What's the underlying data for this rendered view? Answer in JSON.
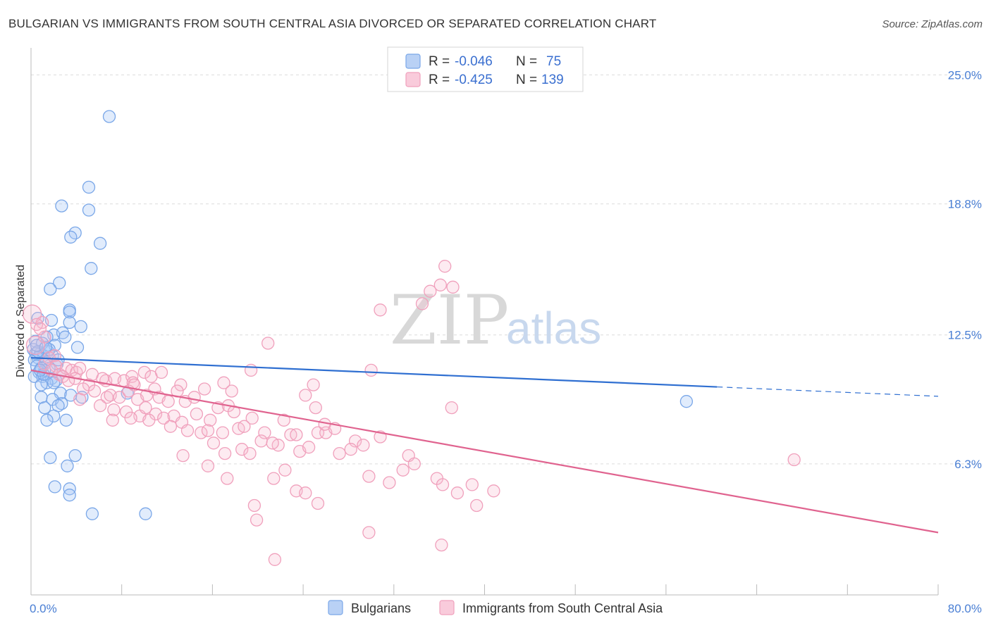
{
  "chart_data": {
    "type": "scatter",
    "title": "BULGARIAN VS IMMIGRANTS FROM SOUTH CENTRAL ASIA DIVORCED OR SEPARATED CORRELATION CHART",
    "source": "Source: ZipAtlas.com",
    "ylabel": "Divorced or Separated",
    "xlabel": "",
    "xlim": [
      0,
      80
    ],
    "ylim": [
      0,
      26.3
    ],
    "x_tick_labels": [
      "0.0%",
      "80.0%"
    ],
    "y_ticks": [
      6.3,
      12.5,
      18.8,
      25.0
    ],
    "y_tick_labels": [
      "6.3%",
      "12.5%",
      "18.8%",
      "25.0%"
    ],
    "watermark": [
      "ZIP",
      "atlas"
    ],
    "legend": {
      "rows": [
        {
          "r_label": "R =",
          "r_value": "-0.046",
          "n_label": "N =",
          "n_value": "75"
        },
        {
          "r_label": "R =",
          "r_value": "-0.425",
          "n_label": "N =",
          "n_value": "139"
        }
      ]
    },
    "series": [
      {
        "name": "Bulgarians",
        "color": "#7aa7e8",
        "line_color": "#2f6fd1",
        "trend": {
          "x0": 0,
          "y0": 11.4,
          "x1": 60.5,
          "y1": 10.0,
          "dash_x1": 80,
          "dash_y1": 9.55
        },
        "points": [
          [
            6.9,
            23.0
          ],
          [
            5.1,
            19.6
          ],
          [
            2.7,
            18.7
          ],
          [
            5.1,
            18.5
          ],
          [
            3.9,
            17.4
          ],
          [
            3.5,
            17.2
          ],
          [
            6.1,
            16.9
          ],
          [
            5.3,
            15.7
          ],
          [
            2.5,
            15.0
          ],
          [
            1.7,
            14.7
          ],
          [
            3.4,
            13.7
          ],
          [
            0.6,
            13.3
          ],
          [
            1.8,
            13.2
          ],
          [
            3.4,
            13.6
          ],
          [
            3.4,
            13.1
          ],
          [
            4.4,
            12.9
          ],
          [
            2.0,
            12.5
          ],
          [
            2.8,
            12.6
          ],
          [
            1.4,
            12.4
          ],
          [
            0.4,
            12.2
          ],
          [
            3.0,
            12.4
          ],
          [
            1.0,
            12.1
          ],
          [
            2.1,
            12.0
          ],
          [
            4.1,
            11.9
          ],
          [
            0.2,
            11.8
          ],
          [
            1.5,
            11.7
          ],
          [
            0.8,
            11.6
          ],
          [
            0.4,
            11.6
          ],
          [
            1.9,
            11.5
          ],
          [
            1.1,
            11.5
          ],
          [
            0.6,
            11.4
          ],
          [
            0.3,
            11.3
          ],
          [
            1.3,
            11.2
          ],
          [
            2.3,
            11.1
          ],
          [
            0.5,
            11.0
          ],
          [
            1.6,
            10.9
          ],
          [
            1.2,
            10.8
          ],
          [
            0.7,
            10.7
          ],
          [
            2.5,
            10.6
          ],
          [
            1.0,
            10.5
          ],
          [
            0.3,
            10.5
          ],
          [
            1.8,
            10.4
          ],
          [
            2.2,
            10.3
          ],
          [
            1.4,
            10.2
          ],
          [
            0.9,
            10.1
          ],
          [
            2.0,
            10.2
          ],
          [
            2.6,
            9.7
          ],
          [
            3.5,
            9.6
          ],
          [
            0.9,
            9.5
          ],
          [
            1.9,
            9.4
          ],
          [
            2.7,
            9.2
          ],
          [
            2.4,
            9.1
          ],
          [
            1.2,
            9.0
          ],
          [
            4.5,
            9.5
          ],
          [
            2.0,
            8.6
          ],
          [
            3.1,
            8.4
          ],
          [
            1.4,
            8.4
          ],
          [
            8.5,
            9.7
          ],
          [
            3.9,
            6.7
          ],
          [
            1.7,
            6.6
          ],
          [
            3.2,
            6.2
          ],
          [
            2.1,
            5.2
          ],
          [
            3.4,
            5.1
          ],
          [
            3.4,
            4.8
          ],
          [
            5.4,
            3.9
          ],
          [
            10.1,
            3.9
          ],
          [
            57.8,
            9.3
          ],
          [
            0.6,
            11.7
          ],
          [
            0.9,
            10.9
          ],
          [
            1.6,
            11.8
          ],
          [
            2.4,
            11.3
          ],
          [
            0.5,
            12.0
          ],
          [
            1.1,
            10.6
          ],
          [
            1.3,
            11.9
          ],
          [
            0.8,
            10.8
          ]
        ]
      },
      {
        "name": "Immigrants from South Central Asia",
        "color": "#f0a0bc",
        "line_color": "#e0638f",
        "trend": {
          "x0": 0,
          "y0": 10.8,
          "x1": 80,
          "y1": 3.0
        },
        "points": [
          [
            0.1,
            13.5
          ],
          [
            1.0,
            13.1
          ],
          [
            0.5,
            13.0
          ],
          [
            1.2,
            12.4
          ],
          [
            0.8,
            12.8
          ],
          [
            0.4,
            12.0
          ],
          [
            2.1,
            11.5
          ],
          [
            1.6,
            11.4
          ],
          [
            1.2,
            11.1
          ],
          [
            2.2,
            11.0
          ],
          [
            1.8,
            10.8
          ],
          [
            2.5,
            10.6
          ],
          [
            3.1,
            10.9
          ],
          [
            3.6,
            10.8
          ],
          [
            4.0,
            10.7
          ],
          [
            4.3,
            10.9
          ],
          [
            2.8,
            10.5
          ],
          [
            3.9,
            10.4
          ],
          [
            5.4,
            10.6
          ],
          [
            5.1,
            10.1
          ],
          [
            6.6,
            10.3
          ],
          [
            7.4,
            10.4
          ],
          [
            8.2,
            10.3
          ],
          [
            8.9,
            10.5
          ],
          [
            9.0,
            10.2
          ],
          [
            10.0,
            10.7
          ],
          [
            10.6,
            10.5
          ],
          [
            4.6,
            9.9
          ],
          [
            5.6,
            9.8
          ],
          [
            6.7,
            9.5
          ],
          [
            7.0,
            9.6
          ],
          [
            7.8,
            9.5
          ],
          [
            8.6,
            9.8
          ],
          [
            9.4,
            9.4
          ],
          [
            10.2,
            9.6
          ],
          [
            10.9,
            9.9
          ],
          [
            11.3,
            9.5
          ],
          [
            12.1,
            9.3
          ],
          [
            13.2,
            10.1
          ],
          [
            13.6,
            9.3
          ],
          [
            14.4,
            9.5
          ],
          [
            4.3,
            9.4
          ],
          [
            6.1,
            9.1
          ],
          [
            7.3,
            8.9
          ],
          [
            8.4,
            8.8
          ],
          [
            9.6,
            8.6
          ],
          [
            10.1,
            9.0
          ],
          [
            11.0,
            8.7
          ],
          [
            11.7,
            8.5
          ],
          [
            12.6,
            8.6
          ],
          [
            13.3,
            8.3
          ],
          [
            14.6,
            8.7
          ],
          [
            15.8,
            8.4
          ],
          [
            16.5,
            9.0
          ],
          [
            17.4,
            9.1
          ],
          [
            17.9,
            8.8
          ],
          [
            7.2,
            8.4
          ],
          [
            8.8,
            8.5
          ],
          [
            10.4,
            8.4
          ],
          [
            12.3,
            8.1
          ],
          [
            13.8,
            7.9
          ],
          [
            15.0,
            7.8
          ],
          [
            15.6,
            7.9
          ],
          [
            16.9,
            7.8
          ],
          [
            17.7,
            9.8
          ],
          [
            18.3,
            8.0
          ],
          [
            19.5,
            8.5
          ],
          [
            20.6,
            7.8
          ],
          [
            21.8,
            7.2
          ],
          [
            22.9,
            7.7
          ],
          [
            23.7,
            6.9
          ],
          [
            24.5,
            7.1
          ],
          [
            25.3,
            7.8
          ],
          [
            26.0,
            7.8
          ],
          [
            16.1,
            7.3
          ],
          [
            17.1,
            6.8
          ],
          [
            18.6,
            7.0
          ],
          [
            19.3,
            6.8
          ],
          [
            20.3,
            7.4
          ],
          [
            21.3,
            7.3
          ],
          [
            22.3,
            8.4
          ],
          [
            23.4,
            7.7
          ],
          [
            24.2,
            9.6
          ],
          [
            25.9,
            8.2
          ],
          [
            27.2,
            6.8
          ],
          [
            28.6,
            7.4
          ],
          [
            29.3,
            7.2
          ],
          [
            30.0,
            10.8
          ],
          [
            20.9,
            12.1
          ],
          [
            19.4,
            10.8
          ],
          [
            17.0,
            10.2
          ],
          [
            13.4,
            6.7
          ],
          [
            15.6,
            6.2
          ],
          [
            17.3,
            5.6
          ],
          [
            19.7,
            4.3
          ],
          [
            19.9,
            3.6
          ],
          [
            21.4,
            5.6
          ],
          [
            22.4,
            6.0
          ],
          [
            23.4,
            5.0
          ],
          [
            24.2,
            4.9
          ],
          [
            25.3,
            4.4
          ],
          [
            29.8,
            5.7
          ],
          [
            30.8,
            7.6
          ],
          [
            31.6,
            5.4
          ],
          [
            32.8,
            6.0
          ],
          [
            33.3,
            6.7
          ],
          [
            33.8,
            6.3
          ],
          [
            35.8,
            5.6
          ],
          [
            36.3,
            5.3
          ],
          [
            37.6,
            4.9
          ],
          [
            38.9,
            5.3
          ],
          [
            39.3,
            4.3
          ],
          [
            40.8,
            5.0
          ],
          [
            37.1,
            9.0
          ],
          [
            34.5,
            14.0
          ],
          [
            35.2,
            14.6
          ],
          [
            36.1,
            14.9
          ],
          [
            36.5,
            15.8
          ],
          [
            37.2,
            14.8
          ],
          [
            30.8,
            13.7
          ],
          [
            29.8,
            3.0
          ],
          [
            36.2,
            2.4
          ],
          [
            21.5,
            1.7
          ],
          [
            67.3,
            6.5
          ],
          [
            25.1,
            9.0
          ],
          [
            26.8,
            8.0
          ],
          [
            11.5,
            10.7
          ],
          [
            9.1,
            10.1
          ],
          [
            12.9,
            9.8
          ],
          [
            15.3,
            9.9
          ],
          [
            6.3,
            10.4
          ],
          [
            3.3,
            10.3
          ],
          [
            18.8,
            8.1
          ],
          [
            24.9,
            10.1
          ],
          [
            28.2,
            7.0
          ]
        ]
      }
    ]
  }
}
